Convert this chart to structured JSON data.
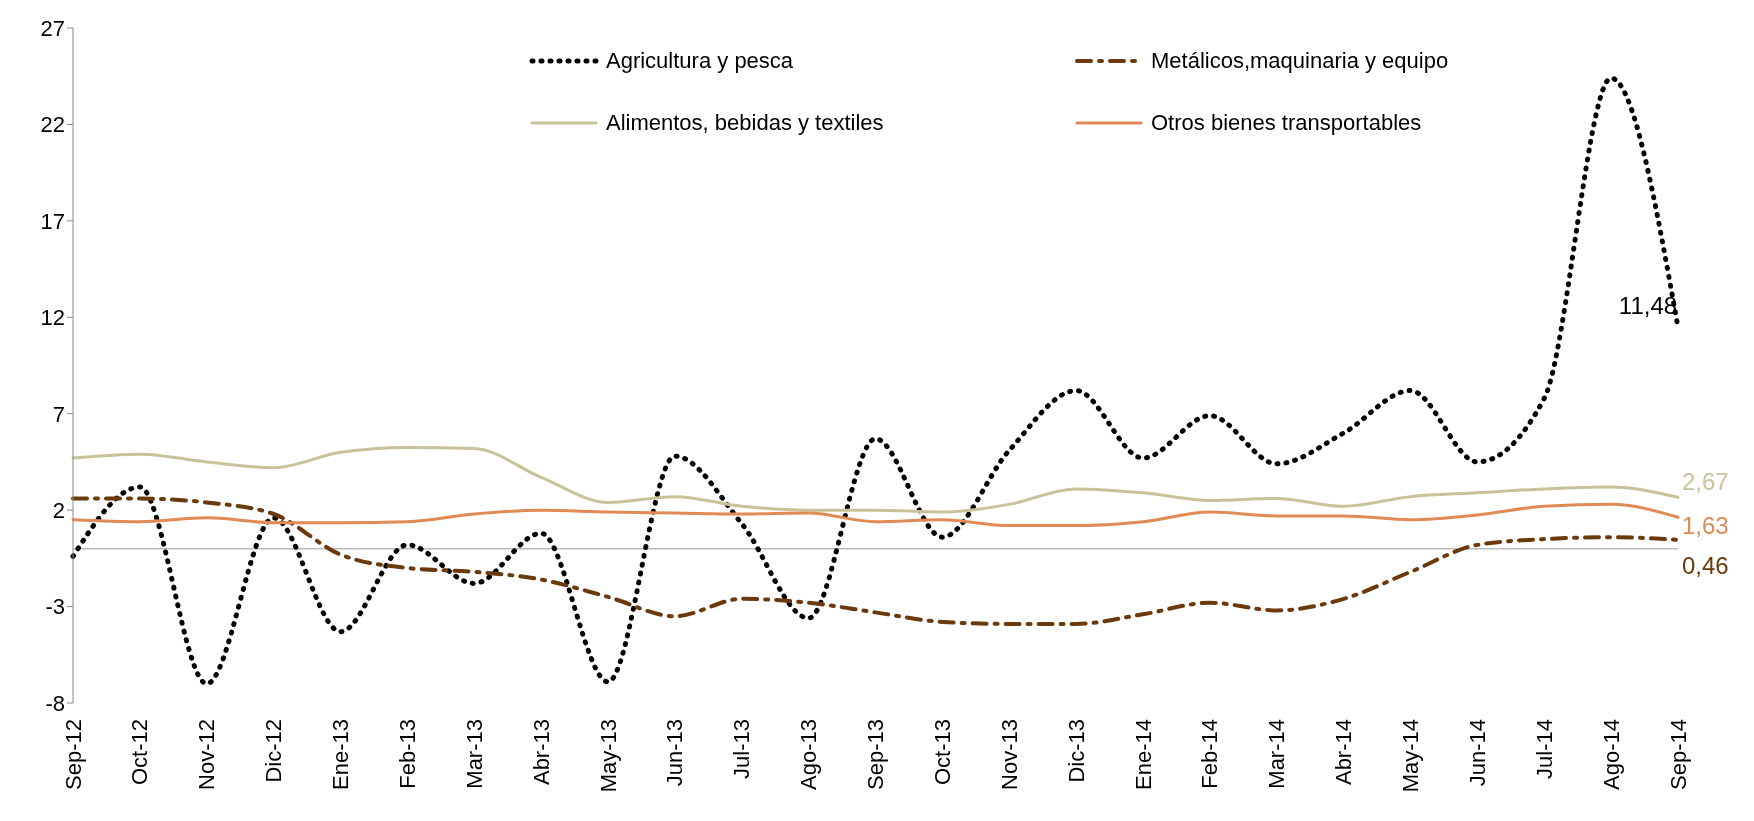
{
  "chart_data": {
    "type": "line",
    "categories": [
      "Sep-12",
      "Oct-12",
      "Nov-12",
      "Dic-12",
      "Ene-13",
      "Feb-13",
      "Mar-13",
      "Abr-13",
      "May-13",
      "Jun-13",
      "Jul-13",
      "Ago-13",
      "Sep-13",
      "Oct-13",
      "Nov-13",
      "Dic-13",
      "Ene-14",
      "Feb-14",
      "Mar-14",
      "Abr-14",
      "May-14",
      "Jun-14",
      "Jul-14",
      "Ago-14",
      "Sep-14"
    ],
    "series": [
      {
        "name": "Agricultura y pesca",
        "color": "#000000",
        "line_style": "dotted",
        "values": [
          -0.4,
          3.2,
          -7.0,
          1.6,
          -4.3,
          0.2,
          -1.8,
          0.8,
          -6.9,
          4.8,
          1.3,
          -3.6,
          5.7,
          0.6,
          5.1,
          8.2,
          4.7,
          6.9,
          4.4,
          6.0,
          8.2,
          4.5,
          7.8,
          24.4,
          11.48
        ],
        "value_labels": [
          null,
          null,
          null,
          null,
          null,
          null,
          null,
          null,
          null,
          null,
          null,
          null,
          null,
          null,
          null,
          null,
          null,
          null,
          null,
          null,
          null,
          null,
          null,
          null,
          "11,48"
        ]
      },
      {
        "name": "Metálicos,maquinaria y equipo",
        "color": "#6b3a0c",
        "line_style": "dashed",
        "values": [
          2.6,
          2.6,
          2.4,
          1.8,
          -0.3,
          -1.0,
          -1.2,
          -1.6,
          -2.5,
          -3.5,
          -2.6,
          -2.8,
          -3.3,
          -3.8,
          -3.9,
          -3.9,
          -3.4,
          -2.8,
          -3.2,
          -2.6,
          -1.2,
          0.2,
          0.5,
          0.6,
          0.46
        ],
        "value_labels": [
          null,
          null,
          null,
          null,
          null,
          null,
          null,
          null,
          null,
          null,
          null,
          null,
          null,
          null,
          null,
          null,
          null,
          null,
          null,
          null,
          null,
          null,
          null,
          null,
          "0,46"
        ]
      },
      {
        "name": "Alimentos, bebidas y textiles",
        "color": "#c8c29a",
        "line_style": "solid",
        "values": [
          4.7,
          4.9,
          4.5,
          4.2,
          5.0,
          5.25,
          5.2,
          3.7,
          2.4,
          2.7,
          2.2,
          2.0,
          2.0,
          1.9,
          2.3,
          3.1,
          2.9,
          2.5,
          2.6,
          2.2,
          2.7,
          2.9,
          3.1,
          3.2,
          2.67
        ],
        "value_labels": [
          null,
          null,
          null,
          null,
          null,
          null,
          null,
          null,
          null,
          null,
          null,
          null,
          null,
          null,
          null,
          null,
          null,
          null,
          null,
          null,
          null,
          null,
          null,
          null,
          "2,67"
        ]
      },
      {
        "name": "Otros bienes transportables",
        "color": "#e08a55",
        "line_style": "solid",
        "values": [
          1.5,
          1.4,
          1.6,
          1.35,
          1.35,
          1.4,
          1.8,
          2.0,
          1.9,
          1.85,
          1.8,
          1.85,
          1.4,
          1.5,
          1.2,
          1.2,
          1.4,
          1.9,
          1.7,
          1.7,
          1.5,
          1.75,
          2.2,
          2.3,
          1.63
        ],
        "value_labels": [
          null,
          null,
          null,
          null,
          null,
          null,
          null,
          null,
          null,
          null,
          null,
          null,
          null,
          null,
          null,
          null,
          null,
          null,
          null,
          null,
          null,
          null,
          null,
          null,
          "1,63"
        ]
      }
    ],
    "ylim": [
      -8,
      27
    ],
    "yticks": [
      -8,
      -3,
      2,
      7,
      12,
      17,
      22,
      27
    ],
    "grid": false,
    "legend": "top right",
    "marker": "none"
  }
}
